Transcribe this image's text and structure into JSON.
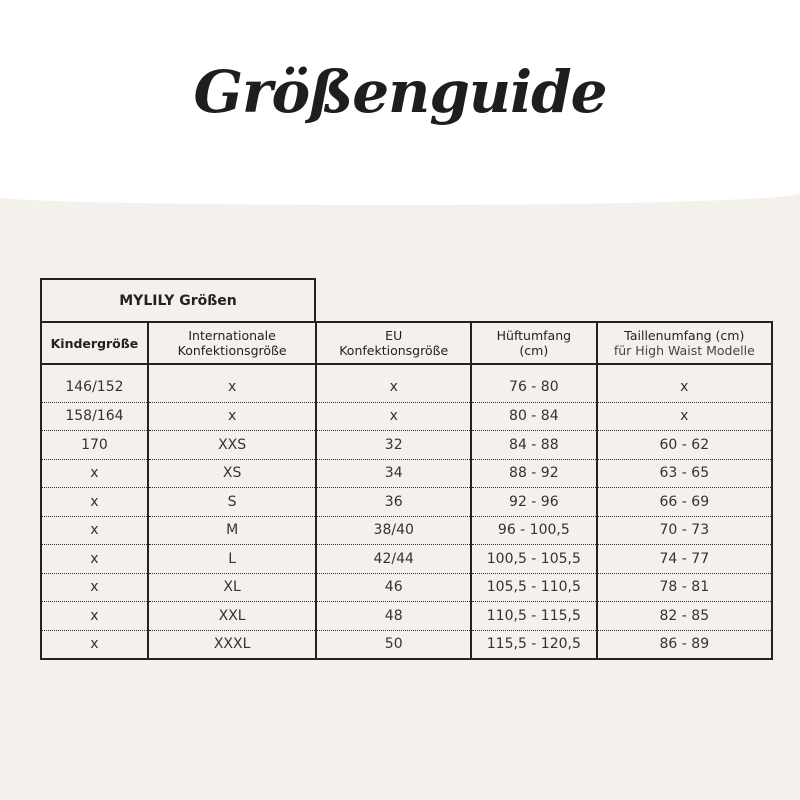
{
  "title": "Größenguide",
  "brand_header": "MYLILY Größen",
  "columns": [
    {
      "line1": "Kindergröße",
      "line2": ""
    },
    {
      "line1": "Internationale",
      "line2": "Konfektionsgröße"
    },
    {
      "line1": "EU",
      "line2": "Konfektionsgröße"
    },
    {
      "line1": "Hüftumfang",
      "line2": "(cm)"
    },
    {
      "line1": "Taillenumfang (cm)",
      "line2": "für High Waist Modelle"
    }
  ],
  "rows": [
    [
      "146/152",
      "x",
      "x",
      "76 - 80",
      "x"
    ],
    [
      "158/164",
      "x",
      "x",
      "80 - 84",
      "x"
    ],
    [
      "170",
      "XXS",
      "32",
      "84 - 88",
      "60 - 62"
    ],
    [
      "x",
      "XS",
      "34",
      "88 - 92",
      "63 - 65"
    ],
    [
      "x",
      "S",
      "36",
      "92 - 96",
      "66 - 69"
    ],
    [
      "x",
      "M",
      "38/40",
      "96 - 100,5",
      "70 - 73"
    ],
    [
      "x",
      "L",
      "42/44",
      "100,5 - 105,5",
      "74 - 77"
    ],
    [
      "x",
      "XL",
      "46",
      "105,5 - 110,5",
      "78 - 81"
    ],
    [
      "x",
      "XXL",
      "48",
      "110,5 - 115,5",
      "82 - 85"
    ],
    [
      "x",
      "XXXL",
      "50",
      "115,5 - 120,5",
      "86 - 89"
    ]
  ]
}
